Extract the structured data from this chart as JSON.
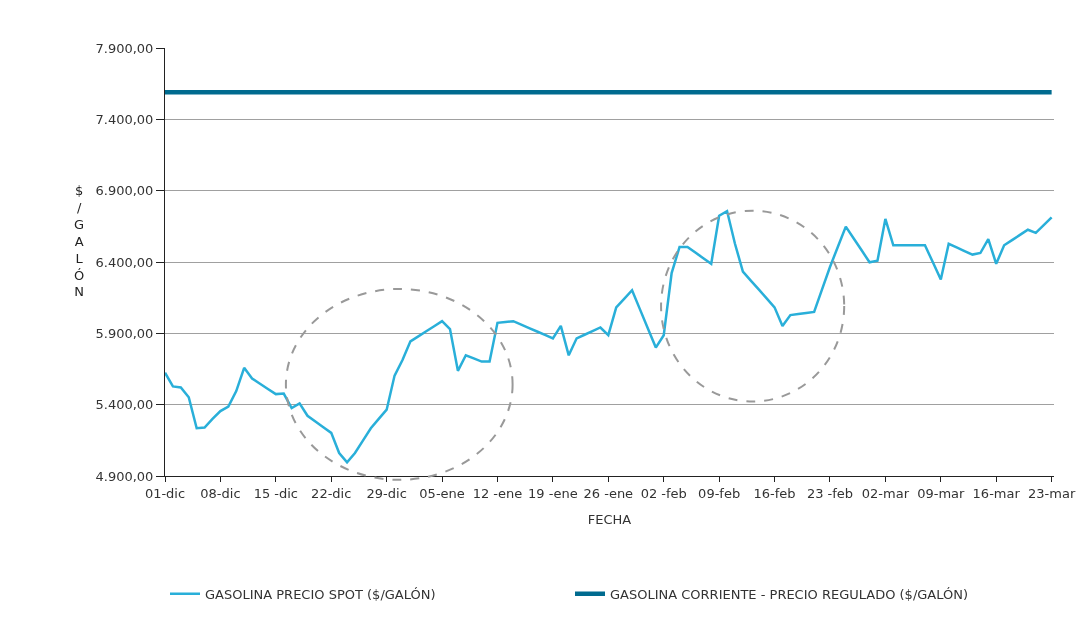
{
  "chart_data": {
    "type": "line",
    "xlabel": "FECHA",
    "ylabel": "$/GALÓN",
    "categories": [
      "01-dic",
      null,
      null,
      null,
      null,
      null,
      null,
      "08-dic",
      null,
      null,
      null,
      null,
      null,
      null,
      "15 -dic",
      null,
      null,
      null,
      null,
      null,
      null,
      "22-dic",
      null,
      null,
      null,
      null,
      null,
      null,
      "29-dic",
      null,
      null,
      null,
      null,
      null,
      null,
      "05-ene",
      null,
      null,
      null,
      null,
      null,
      null,
      "12 -ene",
      null,
      null,
      null,
      null,
      null,
      null,
      "19 -ene",
      null,
      null,
      null,
      null,
      null,
      null,
      "26 -ene",
      null,
      null,
      null,
      null,
      null,
      null,
      "02 -feb",
      null,
      null,
      null,
      null,
      null,
      null,
      "09-feb",
      null,
      null,
      null,
      null,
      null,
      null,
      "16-feb",
      null,
      null,
      null,
      null,
      null,
      null,
      "23 -feb",
      null,
      null,
      null,
      null,
      null,
      null,
      "02-mar",
      null,
      null,
      null,
      null,
      null,
      null,
      "09-mar",
      null,
      null,
      null,
      null,
      null,
      null,
      "16-mar",
      null,
      null,
      null,
      null,
      null,
      null,
      "23-mar"
    ],
    "ylim": [
      4900,
      7900
    ],
    "yticks": [
      {
        "value": 4900,
        "label": "4.900,00"
      },
      {
        "value": 5400,
        "label": "5.400,00"
      },
      {
        "value": 5900,
        "label": "5.900,00"
      },
      {
        "value": 6400,
        "label": "6.400,00"
      },
      {
        "value": 6900,
        "label": "6.900,00"
      },
      {
        "value": 7400,
        "label": "7.400,00"
      },
      {
        "value": 7900,
        "label": "7.900,00"
      }
    ],
    "grid": "y",
    "legend": "bottom",
    "marker": "none",
    "line_style": "solid",
    "series": [
      {
        "name": "GASOLINA PRECIO SPOT ($/GALÓN)",
        "color": "#29afd9",
        "values": [
          5624,
          5528,
          5521,
          5452,
          5235,
          5240,
          5300,
          5355,
          5387,
          5495,
          5658,
          5583,
          5547,
          5510,
          5474,
          5478,
          5376,
          5409,
          5322,
          5282,
          5242,
          5202,
          5061,
          4996,
          5061,
          5148,
          5235,
          5300,
          5365,
          5604,
          5713,
          5844,
          5879,
          5915,
          5950,
          5985,
          5930,
          5637,
          5746,
          5724,
          5702,
          5702,
          5974,
          5980,
          5985,
          5961,
          5937,
          5913,
          5889,
          5865,
          5952,
          5746,
          5865,
          5890,
          5916,
          5941,
          5887,
          6082,
          6142,
          6202,
          6068,
          5934,
          5800,
          5887,
          6322,
          6506,
          6506,
          6466,
          6427,
          6387,
          6724,
          6757,
          6528,
          6333,
          6270,
          6208,
          6145,
          6082,
          5952,
          6028,
          6035,
          6043,
          6050,
          6208,
          6365,
          6507,
          6648,
          6565,
          6482,
          6398,
          6409,
          6702,
          6517,
          6517,
          6517,
          6517,
          6517,
          6398,
          6278,
          6528,
          6503,
          6477,
          6452,
          6463,
          6561,
          6387,
          6517,
          6553,
          6590,
          6626,
          6604,
          6658,
          6713
        ]
      },
      {
        "name": "GASOLINA CORRIENTE - PRECIO REGULADO ($/GALÓN)",
        "color": "#006b8f",
        "values": [
          7590,
          7590,
          7590,
          7590,
          7590,
          7590,
          7590,
          7590,
          7590,
          7590,
          7590,
          7590,
          7590,
          7590,
          7590,
          7590,
          7590,
          7590,
          7590,
          7590,
          7590,
          7590,
          7590,
          7590,
          7590,
          7590,
          7590,
          7590,
          7590,
          7590,
          7590,
          7590,
          7590,
          7590,
          7590,
          7590,
          7590,
          7590,
          7590,
          7590,
          7590,
          7590,
          7590,
          7590,
          7590,
          7590,
          7590,
          7590,
          7590,
          7590,
          7590,
          7590,
          7590,
          7590,
          7590,
          7590,
          7590,
          7590,
          7590,
          7590,
          7590,
          7590,
          7590,
          7590,
          7590,
          7590,
          7590,
          7590,
          7590,
          7590,
          7590,
          7590,
          7590,
          7590,
          7590,
          7590,
          7590,
          7590,
          7590,
          7590,
          7590,
          7590,
          7590,
          7590,
          7590,
          7590,
          7590,
          7590,
          7590,
          7590,
          7590,
          7590,
          7590,
          7590,
          7590,
          7590,
          7590,
          7590,
          7590,
          7590,
          7590,
          7590,
          7590,
          7590,
          7590,
          7590,
          7590,
          7590,
          7590,
          7590,
          7590,
          7590,
          7590
        ]
      }
    ]
  }
}
